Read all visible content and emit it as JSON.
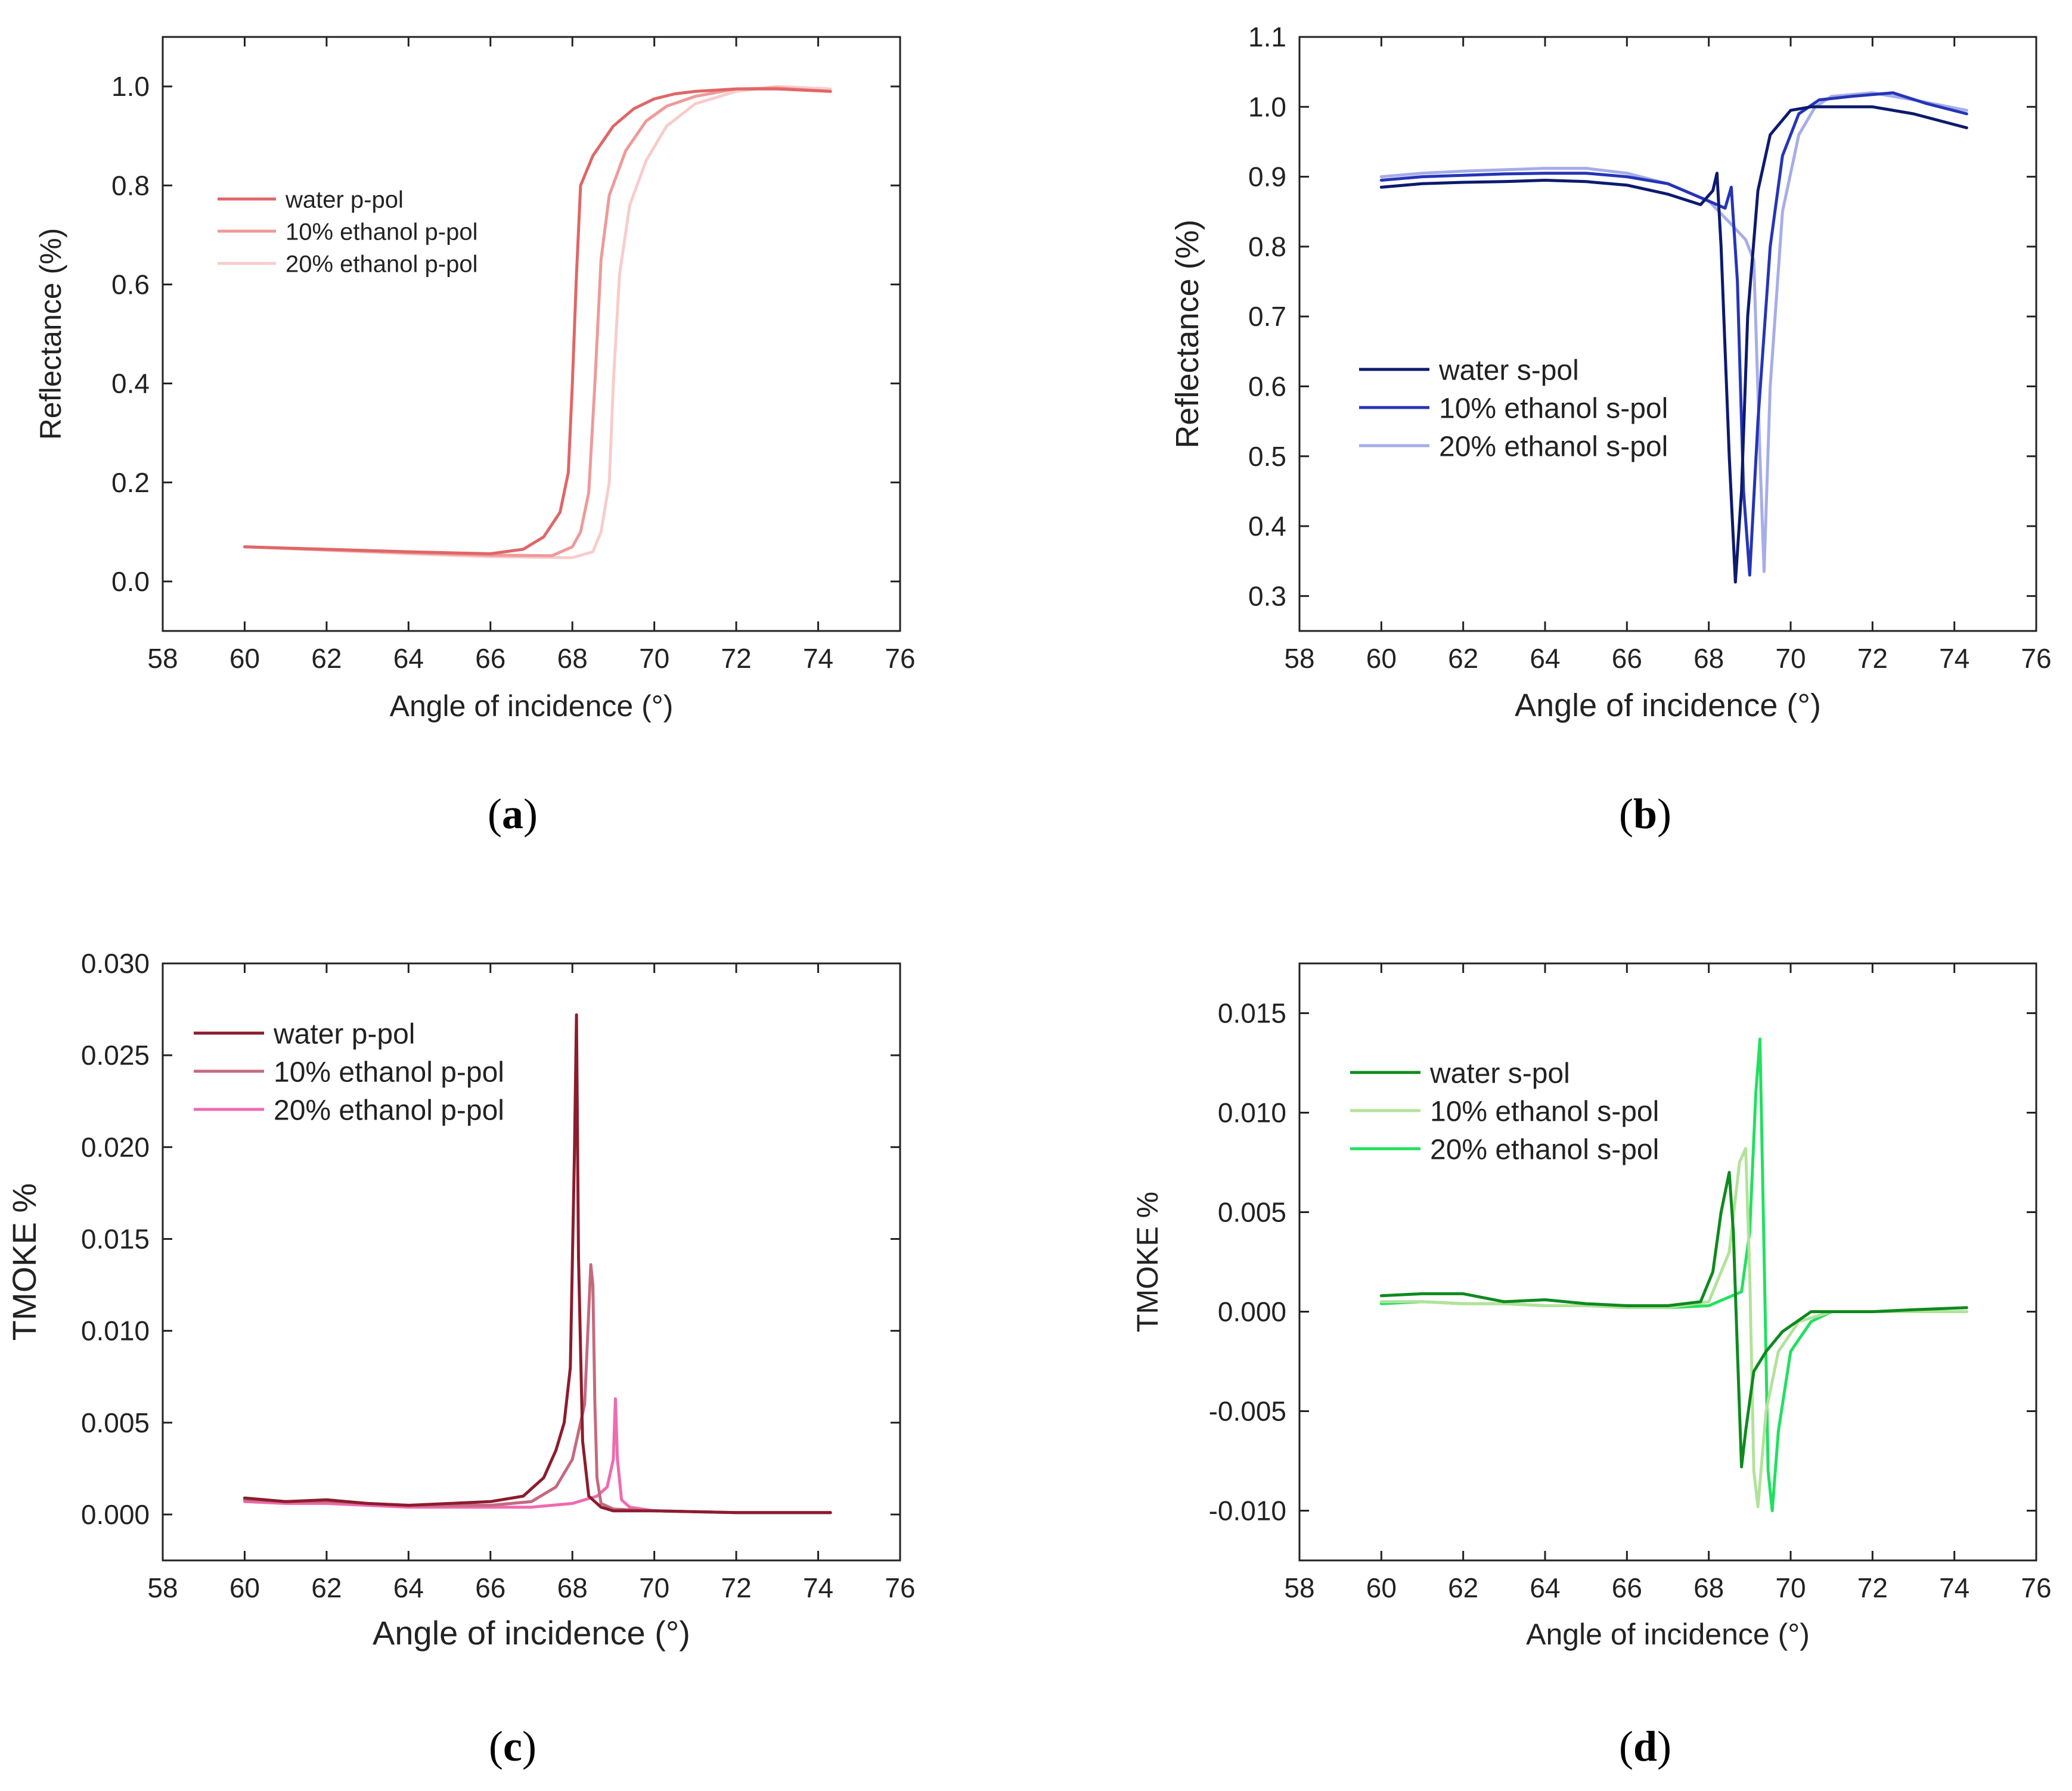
{
  "figure_title": "",
  "chart_data": [
    {
      "panel": "(a)",
      "panel_letter": "a",
      "type": "line",
      "xlabel": "Angle of incidence (°)",
      "ylabel": "Reflectance (%)",
      "xlim": [
        58,
        76
      ],
      "ylim": [
        -0.1,
        1.1
      ],
      "xticks": [
        58,
        60,
        62,
        64,
        66,
        68,
        70,
        72,
        74,
        76
      ],
      "yticks": [
        0.0,
        0.2,
        0.4,
        0.6,
        0.8,
        1.0
      ],
      "ytick_decimals": 1,
      "legend": "upper-left",
      "series": [
        {
          "name": "water p-pol",
          "color": "#e06666",
          "x": [
            60,
            62,
            64,
            66,
            66.8,
            67.3,
            67.7,
            67.9,
            68.0,
            68.1,
            68.2,
            68.5,
            69.0,
            69.5,
            70.0,
            70.5,
            71.0,
            72.0,
            73.0,
            74.3
          ],
          "y": [
            0.07,
            0.065,
            0.06,
            0.056,
            0.065,
            0.09,
            0.14,
            0.22,
            0.4,
            0.62,
            0.8,
            0.86,
            0.92,
            0.955,
            0.975,
            0.985,
            0.99,
            0.995,
            0.995,
            0.99
          ]
        },
        {
          "name": "10% ethanol p-pol",
          "color": "#ee9a9a",
          "x": [
            60,
            62,
            64,
            66,
            67.5,
            68.0,
            68.2,
            68.4,
            68.55,
            68.7,
            68.9,
            69.3,
            69.8,
            70.3,
            71.0,
            72.0,
            73.0,
            74.3
          ],
          "y": [
            0.07,
            0.064,
            0.058,
            0.053,
            0.052,
            0.07,
            0.1,
            0.18,
            0.4,
            0.65,
            0.78,
            0.87,
            0.93,
            0.96,
            0.98,
            0.995,
            0.997,
            0.99
          ]
        },
        {
          "name": "20% ethanol p-pol",
          "color": "#f8cccc",
          "x": [
            60,
            62,
            64,
            66,
            68.0,
            68.5,
            68.7,
            68.9,
            69.0,
            69.15,
            69.4,
            69.8,
            70.3,
            71.0,
            72.0,
            73.0,
            74.3
          ],
          "y": [
            0.07,
            0.063,
            0.056,
            0.05,
            0.048,
            0.06,
            0.1,
            0.2,
            0.4,
            0.62,
            0.76,
            0.85,
            0.92,
            0.965,
            0.99,
            1.0,
            0.995
          ]
        }
      ]
    },
    {
      "panel": "(b)",
      "panel_letter": "b",
      "type": "line",
      "xlabel": "Angle of incidence (°)",
      "ylabel": "Reflectance (%)",
      "xlim": [
        58,
        76
      ],
      "ylim": [
        0.25,
        1.1
      ],
      "xticks": [
        58,
        60,
        62,
        64,
        66,
        68,
        70,
        72,
        74,
        76
      ],
      "yticks": [
        0.3,
        0.4,
        0.5,
        0.6,
        0.7,
        0.8,
        0.9,
        1.0,
        1.1
      ],
      "ytick_decimals": 1,
      "legend": "left",
      "series": [
        {
          "name": "water s-pol",
          "color": "#0d1a6e",
          "x": [
            60,
            61,
            62,
            63,
            64,
            65,
            66,
            67,
            67.8,
            68.1,
            68.2,
            68.3,
            68.5,
            68.65,
            68.8,
            68.95,
            69.2,
            69.5,
            70.0,
            70.5,
            71.0,
            72.0,
            73.0,
            74.3
          ],
          "y": [
            0.885,
            0.89,
            0.892,
            0.893,
            0.895,
            0.893,
            0.888,
            0.875,
            0.86,
            0.88,
            0.905,
            0.8,
            0.5,
            0.32,
            0.45,
            0.7,
            0.88,
            0.96,
            0.995,
            1.0,
            1.0,
            1.0,
            0.99,
            0.97
          ]
        },
        {
          "name": "10% ethanol s-pol",
          "color": "#2535b8",
          "x": [
            60,
            61,
            62,
            63,
            64,
            65,
            66,
            67,
            68.0,
            68.4,
            68.55,
            68.7,
            68.85,
            69.0,
            69.2,
            69.5,
            69.8,
            70.2,
            70.7,
            71.5,
            72.5,
            73.3,
            74.3
          ],
          "y": [
            0.895,
            0.9,
            0.902,
            0.904,
            0.905,
            0.905,
            0.9,
            0.89,
            0.865,
            0.855,
            0.885,
            0.75,
            0.45,
            0.33,
            0.55,
            0.8,
            0.93,
            0.99,
            1.01,
            1.015,
            1.02,
            1.005,
            0.99
          ]
        },
        {
          "name": "20% ethanol s-pol",
          "color": "#a6ade8",
          "x": [
            60,
            61,
            62,
            63,
            64,
            65,
            66,
            67,
            68.0,
            68.5,
            68.9,
            69.1,
            69.25,
            69.35,
            69.5,
            69.8,
            70.2,
            70.6,
            71.0,
            72.0,
            73.0,
            74.3
          ],
          "y": [
            0.9,
            0.905,
            0.908,
            0.91,
            0.912,
            0.912,
            0.905,
            0.89,
            0.865,
            0.835,
            0.81,
            0.78,
            0.5,
            0.335,
            0.6,
            0.85,
            0.96,
            1.0,
            1.015,
            1.02,
            1.01,
            0.995
          ]
        }
      ]
    },
    {
      "panel": "(c)",
      "panel_letter": "c",
      "type": "line",
      "xlabel": "Angle of incidence (°)",
      "ylabel": "TMOKE %",
      "xlim": [
        58,
        76
      ],
      "ylim": [
        -0.0025,
        0.03
      ],
      "xticks": [
        58,
        60,
        62,
        64,
        66,
        68,
        70,
        72,
        74,
        76
      ],
      "yticks": [
        0.0,
        0.005,
        0.01,
        0.015,
        0.02,
        0.025,
        0.03
      ],
      "ytick_decimals": 3,
      "legend": "upper-left",
      "series": [
        {
          "name": "water p-pol",
          "color": "#8c1c2e",
          "x": [
            60,
            61,
            62,
            63,
            64,
            65,
            66,
            66.8,
            67.3,
            67.6,
            67.8,
            67.95,
            68.05,
            68.1,
            68.15,
            68.25,
            68.4,
            68.7,
            69.0,
            70,
            72,
            74.3
          ],
          "y": [
            0.0009,
            0.0007,
            0.0008,
            0.0006,
            0.0005,
            0.0006,
            0.0007,
            0.001,
            0.002,
            0.0035,
            0.005,
            0.008,
            0.0197,
            0.0272,
            0.014,
            0.004,
            0.001,
            0.0004,
            0.0002,
            0.0002,
            0.0001,
            0.0001
          ]
        },
        {
          "name": "10% ethanol p-pol",
          "color": "#c46a80",
          "x": [
            60,
            61,
            62,
            63,
            64,
            65,
            66,
            67,
            67.6,
            68.0,
            68.3,
            68.45,
            68.5,
            68.55,
            68.6,
            68.7,
            69.0,
            70,
            72,
            74.3
          ],
          "y": [
            0.0008,
            0.0007,
            0.0007,
            0.0006,
            0.0005,
            0.0005,
            0.0005,
            0.0007,
            0.0015,
            0.003,
            0.006,
            0.0136,
            0.0125,
            0.006,
            0.002,
            0.0006,
            0.0003,
            0.0002,
            0.0001,
            0.0001
          ]
        },
        {
          "name": "20% ethanol p-pol",
          "color": "#f06ab0",
          "x": [
            60,
            61,
            62,
            63,
            64,
            65,
            66,
            67,
            68.0,
            68.6,
            68.85,
            69.0,
            69.05,
            69.1,
            69.2,
            69.4,
            70,
            72,
            74.3
          ],
          "y": [
            0.0007,
            0.0006,
            0.0006,
            0.0005,
            0.0004,
            0.0004,
            0.0004,
            0.0004,
            0.0006,
            0.001,
            0.0015,
            0.003,
            0.0063,
            0.003,
            0.0008,
            0.0004,
            0.0002,
            0.0001,
            0.0001
          ]
        }
      ]
    },
    {
      "panel": "(d)",
      "panel_letter": "d",
      "type": "line",
      "xlabel": "Angle of incidence (°)",
      "ylabel": "TMOKE %",
      "xlim": [
        58,
        76
      ],
      "ylim": [
        -0.0125,
        0.0175
      ],
      "xticks": [
        58,
        60,
        62,
        64,
        66,
        68,
        70,
        72,
        74,
        76
      ],
      "yticks": [
        -0.01,
        -0.005,
        0.0,
        0.005,
        0.01,
        0.015
      ],
      "ytick_decimals": 3,
      "legend": "upper-left",
      "series": [
        {
          "name": "water s-pol",
          "color": "#0e8a1e",
          "x": [
            60,
            61,
            62,
            63,
            64,
            65,
            66,
            67,
            67.8,
            68.1,
            68.3,
            68.5,
            68.6,
            68.7,
            68.8,
            68.9,
            69.1,
            69.4,
            69.8,
            70.5,
            72,
            73,
            74.3
          ],
          "y": [
            0.0008,
            0.0009,
            0.0009,
            0.0005,
            0.0006,
            0.0004,
            0.0003,
            0.0003,
            0.0005,
            0.002,
            0.005,
            0.007,
            0.004,
            -0.002,
            -0.0078,
            -0.006,
            -0.003,
            -0.002,
            -0.001,
            0.0,
            0.0,
            0.0001,
            0.0002
          ]
        },
        {
          "name": "10% ethanol s-pol",
          "color": "#b2e29a",
          "x": [
            60,
            61,
            62,
            63,
            64,
            65,
            66,
            67,
            68.0,
            68.5,
            68.75,
            68.9,
            69.0,
            69.1,
            69.2,
            69.4,
            69.7,
            70.2,
            71,
            72,
            73,
            74.3
          ],
          "y": [
            0.0005,
            0.0005,
            0.0004,
            0.0004,
            0.0003,
            0.0003,
            0.0002,
            0.0002,
            0.0005,
            0.003,
            0.0075,
            0.0082,
            0.002,
            -0.008,
            -0.0098,
            -0.005,
            -0.002,
            -0.0005,
            0.0,
            0.0,
            0.0,
            0.0
          ]
        },
        {
          "name": "20% ethanol s-pol",
          "color": "#22e060",
          "x": [
            60,
            61,
            62,
            63,
            64,
            65,
            66,
            67,
            68.0,
            68.8,
            69.0,
            69.15,
            69.25,
            69.35,
            69.45,
            69.55,
            69.7,
            70.0,
            70.5,
            71,
            72,
            73,
            74.3
          ],
          "y": [
            0.0004,
            0.0005,
            0.0004,
            0.0004,
            0.0003,
            0.0003,
            0.0003,
            0.0002,
            0.0003,
            0.001,
            0.004,
            0.011,
            0.0137,
            0.003,
            -0.008,
            -0.01,
            -0.006,
            -0.002,
            -0.0005,
            0.0,
            0.0,
            0.0,
            0.0
          ]
        }
      ]
    }
  ]
}
